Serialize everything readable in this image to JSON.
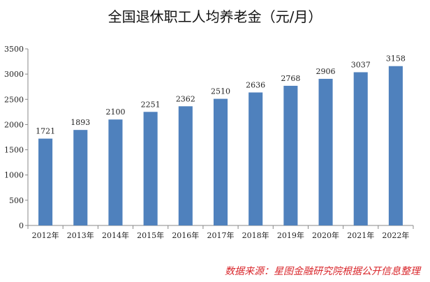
{
  "chart_data": {
    "type": "bar",
    "title": "全国退休职工人均养老金（元/月）",
    "categories": [
      "2012年",
      "2013年",
      "2014年",
      "2015年",
      "2016年",
      "2017年",
      "2018年",
      "2019年",
      "2020年",
      "2021年",
      "2022年"
    ],
    "values": [
      1721,
      1893,
      2100,
      2251,
      2362,
      2510,
      2636,
      2768,
      2906,
      3037,
      3158
    ],
    "yticks": [
      "0",
      "500",
      "1000",
      "1500",
      "2000",
      "2500",
      "3000",
      "3500"
    ],
    "ylim": [
      0,
      3500
    ],
    "xlabel": "",
    "ylabel": "",
    "bar_color": "#4f81bd",
    "grid": false,
    "legend": "none"
  },
  "source_note": "数据来源：星图金融研究院根据公开信息整理"
}
